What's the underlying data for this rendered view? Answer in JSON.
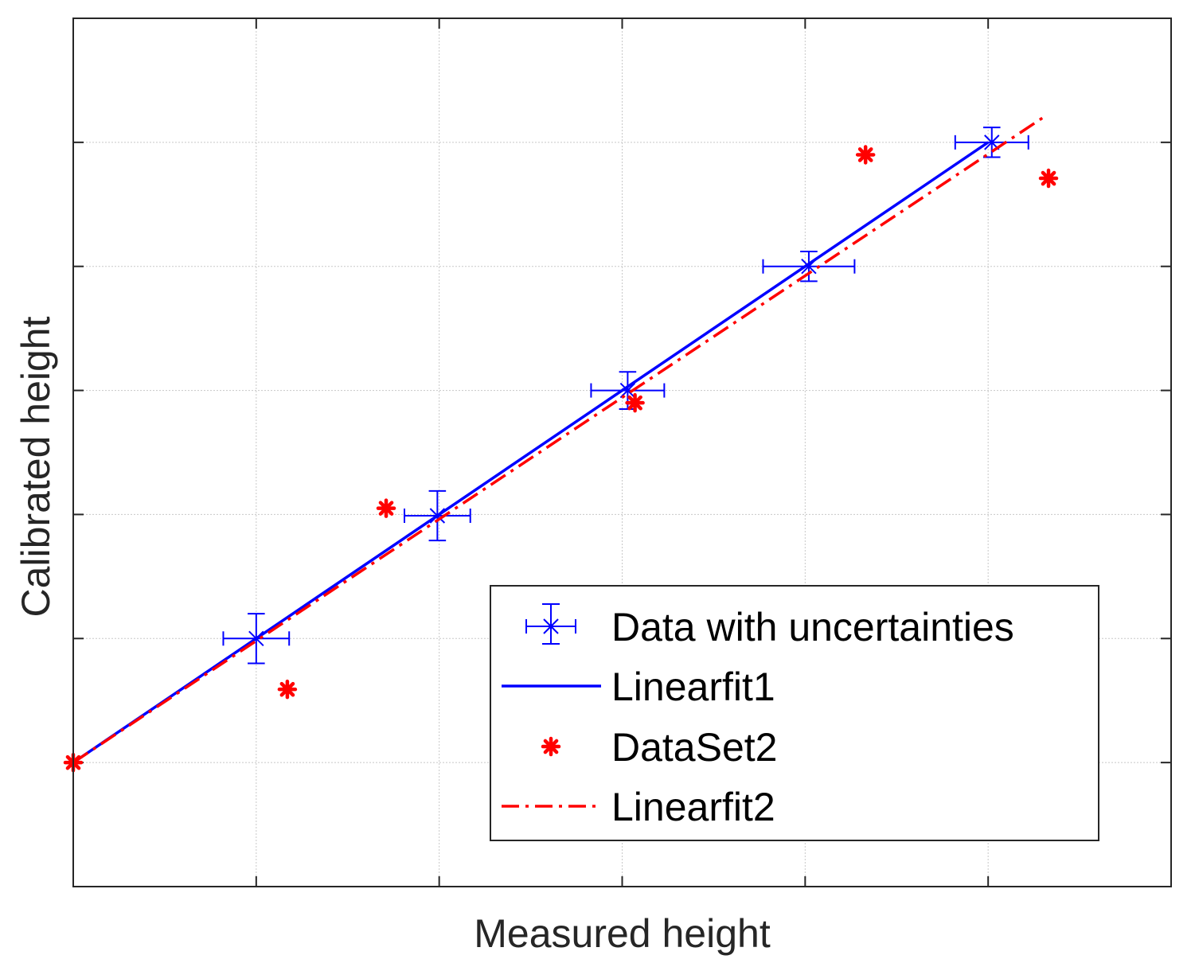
{
  "chart_data": {
    "type": "scatter",
    "title": "",
    "xlabel": "Measured height",
    "ylabel": "Calibrated height",
    "xlim": [
      0,
      6
    ],
    "ylim": [
      -1,
      6
    ],
    "xticks": [
      1,
      2,
      3,
      4,
      5
    ],
    "yticks": [
      0,
      1,
      2,
      3,
      4,
      5
    ],
    "show_tick_labels": false,
    "grid": true,
    "legend_position": "bottom-right",
    "series": [
      {
        "name": "Data with uncertainties",
        "kind": "errorbar",
        "color": "#0000ff",
        "marker": "x",
        "x": [
          1.0,
          1.99,
          3.03,
          4.02,
          5.02
        ],
        "y": [
          1.0,
          1.99,
          3.0,
          4.0,
          5.0
        ],
        "xerr": [
          0.18,
          0.18,
          0.2,
          0.25,
          0.2
        ],
        "yerr": [
          0.2,
          0.2,
          0.15,
          0.12,
          0.12
        ]
      },
      {
        "name": "Linearfit1",
        "kind": "line",
        "color": "#0000ff",
        "dash": "solid",
        "x": [
          0.0,
          5.0
        ],
        "y": [
          0.0,
          5.0
        ]
      },
      {
        "name": "DataSet2",
        "kind": "scatter",
        "color": "#ff0000",
        "marker": "asterisk",
        "x": [
          0.0,
          1.17,
          1.71,
          3.07,
          4.33,
          5.33
        ],
        "y": [
          0.0,
          0.59,
          2.05,
          2.9,
          4.9,
          4.71
        ]
      },
      {
        "name": "Linearfit2",
        "kind": "line",
        "color": "#ff0000",
        "dash": "dashdot",
        "x": [
          0.0,
          5.3
        ],
        "y": [
          0.0,
          5.2
        ]
      }
    ]
  }
}
